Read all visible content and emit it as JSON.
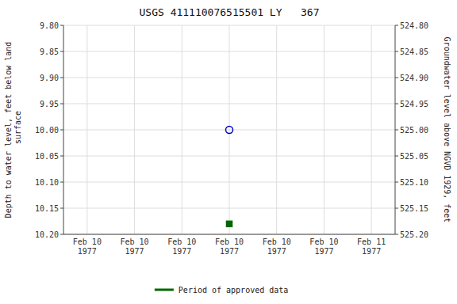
{
  "chart_data": {
    "type": "scatter",
    "title": "USGS 411110076515501 LY   367",
    "y_label": "Depth to water level, feet below land\n surface",
    "y2_label": "Groundwater level above NGVD 1929, feet",
    "categories": [
      "Feb 10\n1977",
      "Feb 10\n1977",
      "Feb 10\n1977",
      "Feb 10\n1977",
      "Feb 10\n1977",
      "Feb 10\n1977",
      "Feb 11\n1977"
    ],
    "series": [
      {
        "color": "#0000cc",
        "marker": "open-circle",
        "values": [
          null,
          null,
          null,
          10,
          null,
          null,
          null
        ]
      },
      {
        "name": "Period of approved data",
        "color": "#006600",
        "marker": "square",
        "values": [
          null,
          null,
          null,
          10.18,
          null,
          null,
          null
        ]
      }
    ],
    "ylim": [
      10.2,
      9.8
    ],
    "yticks": [
      {
        "value": 9.8,
        "label": "9.80"
      },
      9.85,
      {
        "value": 9.9,
        "label": "9.90"
      },
      9.95,
      {
        "value": 10,
        "label": "10.00"
      },
      10.05,
      {
        "value": 10.1,
        "label": "10.10"
      },
      10.15,
      {
        "value": 10.2,
        "label": "10.20"
      }
    ],
    "y2lim": [
      525.2,
      524.8
    ],
    "y2ticks": [
      {
        "value": 524.8,
        "label": "524.80"
      },
      524.85,
      {
        "value": 524.9,
        "label": "524.90"
      },
      524.95,
      {
        "value": 525,
        "label": "525.00"
      },
      525.05,
      {
        "value": 525.1,
        "label": "525.10"
      },
      525.15,
      {
        "value": 525.2,
        "label": "525.20"
      }
    ],
    "grid": true,
    "legend": "bottom"
  }
}
